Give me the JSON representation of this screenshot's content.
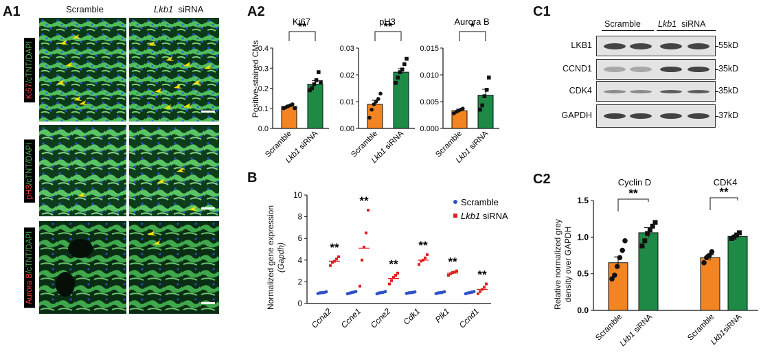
{
  "panels": {
    "a1": "A1",
    "a2": "A2",
    "b": "B",
    "c1": "C1",
    "c2": "C2"
  },
  "a1": {
    "columns": [
      "Scramble",
      "Lkb1",
      "siRNA"
    ],
    "rows": [
      {
        "marker": "Ki67",
        "rest": "/cTNT/DAPI",
        "marker_color": "#ff4040"
      },
      {
        "marker": "pH3",
        "rest": "/cTNT/DAPI",
        "marker_color": "#ff4040"
      },
      {
        "marker": "Aurora B",
        "rest": "/cTNT/DAPI",
        "marker_color": "#ff4040"
      }
    ],
    "arrow_color": "#ffe000"
  },
  "a2": {
    "ylabel": "Positive-stained CMs",
    "x_labels": [
      "Scramble",
      "Lkb1",
      "siRNA"
    ]
  },
  "b": {
    "ylabel_line1": "Normalized gene expression",
    "ylabel_line2": "(Gapdh)"
  },
  "c1": {
    "group_scramble": "Scramble",
    "group_lkb1": "Lkb1",
    "group_sirna": "siRNA",
    "bands": [
      {
        "protein": "LKB1",
        "size": "55kD"
      },
      {
        "protein": "CCND1",
        "size": "35kD"
      },
      {
        "protein": "CDK4",
        "size": "35kD"
      },
      {
        "protein": "GAPDH",
        "size": "37kD"
      }
    ]
  },
  "c2": {
    "ylabel_line1": "Relative normalized grey",
    "ylabel_line2": "density over GAPDH"
  },
  "colors": {
    "scramble_bar": "#f28522",
    "lkb1_bar": "#1f8a46",
    "scramble_dot": "#3050c8",
    "lkb1_dot": "#e02020"
  },
  "chart_data": [
    {
      "id": "a2-ki67",
      "type": "bar",
      "title": "Ki67",
      "categories": [
        "Scramble",
        "Lkb1 siRNA"
      ],
      "values": [
        0.11,
        0.22
      ],
      "errors": [
        0.006,
        0.018
      ],
      "points": [
        [
          0.1,
          0.105,
          0.11,
          0.115,
          0.12,
          0.1
        ],
        [
          0.19,
          0.2,
          0.22,
          0.24,
          0.28,
          0.23
        ]
      ],
      "ylim": [
        0,
        0.4
      ],
      "yticks": [
        "0.0",
        "0.1",
        "0.2",
        "0.3",
        "0.4"
      ],
      "significance": "**"
    },
    {
      "id": "a2-ph3",
      "type": "bar",
      "title": "pH3",
      "categories": [
        "Scramble",
        "Lkb1 siRNA"
      ],
      "values": [
        0.009,
        0.021
      ],
      "errors": [
        0.0015,
        0.0013
      ],
      "points": [
        [
          0.004,
          0.007,
          0.009,
          0.01,
          0.011,
          0.013
        ],
        [
          0.017,
          0.019,
          0.021,
          0.022,
          0.024,
          0.026
        ]
      ],
      "ylim": [
        0,
        0.03
      ],
      "yticks": [
        "0.00",
        "0.01",
        "0.02",
        "0.03"
      ],
      "significance": "**"
    },
    {
      "id": "a2-aurorab",
      "type": "bar",
      "title": "Aurora B",
      "categories": [
        "Scramble",
        "Lkb1 siRNA"
      ],
      "values": [
        0.0033,
        0.0062
      ],
      "errors": [
        0.0003,
        0.0011
      ],
      "points": [
        [
          0.0028,
          0.0031,
          0.0033,
          0.0035,
          0.0037
        ],
        [
          0.0035,
          0.0043,
          0.006,
          0.0072,
          0.0095
        ]
      ],
      "ylim": [
        0,
        0.015
      ],
      "yticks": [
        "0.000",
        "0.005",
        "0.010",
        "0.015"
      ],
      "significance": "*"
    },
    {
      "id": "b-genes",
      "type": "scatter",
      "categories": [
        "Ccna2",
        "Ccne1",
        "Ccne2",
        "Cdk1",
        "Plk1",
        "Ccnd1"
      ],
      "series": [
        {
          "name": "Scramble",
          "means": [
            1,
            1,
            1,
            1,
            1,
            1
          ],
          "points": [
            [
              0.92,
              0.98,
              1.0,
              1.02,
              1.08
            ],
            [
              0.9,
              0.95,
              1.0,
              1.05,
              1.1
            ],
            [
              0.9,
              0.97,
              1.0,
              1.03,
              1.1
            ],
            [
              0.93,
              0.98,
              1.0,
              1.02,
              1.07
            ],
            [
              0.92,
              0.97,
              1.0,
              1.03,
              1.08
            ],
            [
              0.9,
              0.96,
              1.0,
              1.04,
              1.1
            ]
          ]
        },
        {
          "name": "Lkb1 siRNA",
          "means": [
            3.9,
            5.1,
            2.3,
            4.0,
            2.8,
            1.3
          ],
          "points": [
            [
              3.5,
              3.8,
              3.9,
              4.1,
              4.3
            ],
            [
              1.6,
              4.0,
              5.2,
              6.5,
              8.6
            ],
            [
              1.8,
              2.1,
              2.4,
              2.6,
              2.8
            ],
            [
              3.6,
              3.9,
              4.0,
              4.2,
              4.5
            ],
            [
              2.6,
              2.75,
              2.85,
              2.9,
              3.0
            ],
            [
              0.9,
              1.1,
              1.3,
              1.5,
              1.8
            ]
          ]
        }
      ],
      "ylim": [
        0,
        10
      ],
      "yticks": [
        "0",
        "2",
        "4",
        "6",
        "8",
        "10"
      ],
      "significance": [
        "**",
        "**",
        "**",
        "**",
        "**",
        "**"
      ]
    },
    {
      "id": "c2-density",
      "type": "bar",
      "groups": [
        {
          "title": "Cyclin D",
          "categories": [
            "Scramble",
            "Lkb1 siRNA"
          ],
          "values": [
            0.65,
            1.06
          ],
          "errors": [
            0.08,
            0.07
          ],
          "points": [
            [
              0.43,
              0.48,
              0.6,
              0.72,
              0.82,
              0.95
            ],
            [
              0.88,
              0.95,
              1.05,
              1.1,
              1.15,
              1.2
            ]
          ],
          "significance": "**"
        },
        {
          "title": "CDK4",
          "categories": [
            "Scramble",
            "Lkb1 siRNA"
          ],
          "values": [
            0.72,
            1.01
          ],
          "errors": [
            0.04,
            0.025
          ],
          "points": [
            [
              0.65,
              0.72,
              0.75,
              0.8
            ],
            [
              0.98,
              1.0,
              1.03,
              1.06
            ]
          ],
          "significance": "**"
        }
      ],
      "ylim": [
        0,
        1.5
      ],
      "yticks": [
        "0.0",
        "0.5",
        "1.0",
        "1.5"
      ]
    }
  ]
}
